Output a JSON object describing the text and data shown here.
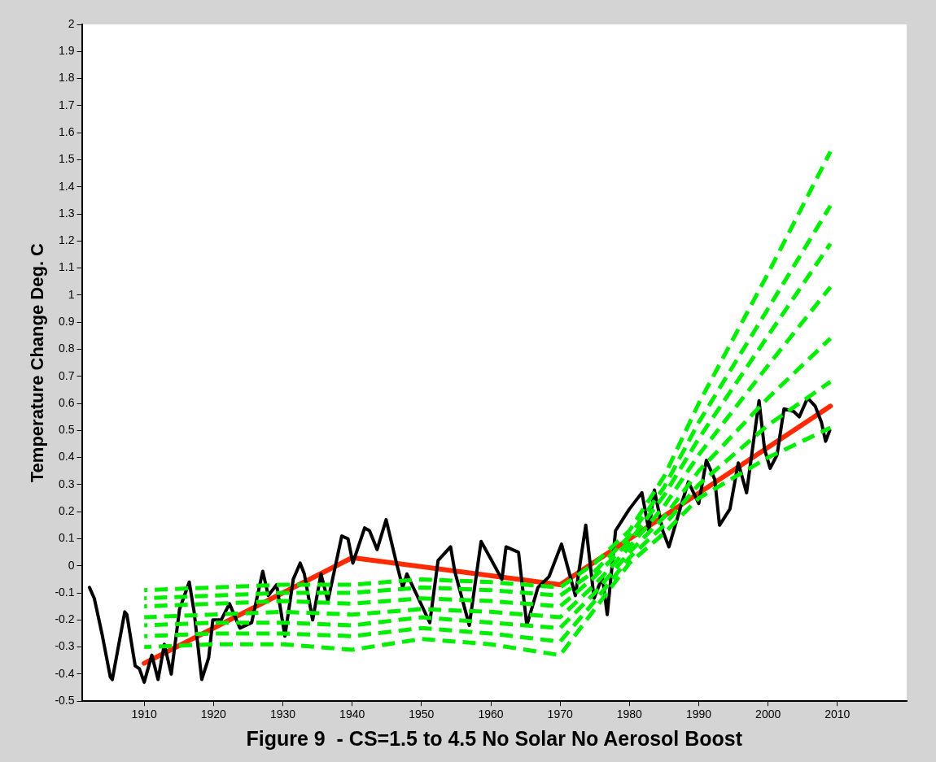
{
  "chart_data": {
    "type": "line",
    "xlabel": "Figure 9  - CS=1.5 to 4.5 No Solar No Aerosol Boost",
    "ylabel": "Temperature Change Deg. C",
    "xlim": [
      1901,
      2020
    ],
    "xticks": [
      1910,
      1920,
      1930,
      1940,
      1950,
      1960,
      1970,
      1980,
      1990,
      2000,
      2010
    ],
    "ylim": [
      -0.5,
      2
    ],
    "yticks": [
      -0.5,
      -0.4,
      -0.3,
      -0.2,
      -0.1,
      0,
      0.1,
      0.2,
      0.3,
      0.4,
      0.5,
      0.6,
      0.7,
      0.8,
      0.9,
      1,
      1.1,
      1.2,
      1.3,
      1.4,
      1.5,
      1.6,
      1.7,
      1.8,
      1.9,
      2
    ],
    "grid": false,
    "legend": false,
    "marker": "none",
    "series": [
      {
        "color": "#00ee00",
        "line_style": "dashed",
        "x": [
          1910,
          1920,
          1930,
          1940,
          1950,
          1960,
          1970,
          1975,
          1980,
          1985,
          1990,
          2000,
          2009
        ],
        "values": [
          -0.09,
          -0.08,
          -0.07,
          -0.07,
          -0.05,
          -0.06,
          -0.08,
          0.01,
          0.13,
          0.33,
          0.6,
          1.08,
          1.53
        ]
      },
      {
        "color": "#00ee00",
        "line_style": "dashed",
        "x": [
          1910,
          1920,
          1930,
          1940,
          1950,
          1960,
          1970,
          1975,
          1980,
          1985,
          1990,
          2000,
          2009
        ],
        "values": [
          -0.12,
          -0.11,
          -0.1,
          -0.1,
          -0.08,
          -0.09,
          -0.11,
          -0.02,
          0.11,
          0.29,
          0.53,
          0.95,
          1.33
        ]
      },
      {
        "color": "#00ee00",
        "line_style": "dashed",
        "x": [
          1910,
          1920,
          1930,
          1940,
          1950,
          1960,
          1970,
          1975,
          1980,
          1985,
          1990,
          2000,
          2009
        ],
        "values": [
          -0.15,
          -0.14,
          -0.13,
          -0.14,
          -0.12,
          -0.13,
          -0.15,
          -0.04,
          0.09,
          0.26,
          0.47,
          0.85,
          1.19
        ]
      },
      {
        "color": "#00ee00",
        "line_style": "dashed",
        "x": [
          1910,
          1920,
          1930,
          1940,
          1950,
          1960,
          1970,
          1975,
          1980,
          1985,
          1990,
          2000,
          2009
        ],
        "values": [
          -0.19,
          -0.18,
          -0.17,
          -0.18,
          -0.16,
          -0.17,
          -0.19,
          -0.07,
          0.07,
          0.22,
          0.41,
          0.74,
          1.03
        ]
      },
      {
        "color": "#00ee00",
        "line_style": "dashed",
        "x": [
          1910,
          1920,
          1930,
          1940,
          1950,
          1960,
          1970,
          1975,
          1980,
          1985,
          1990,
          2000,
          2009
        ],
        "values": [
          -0.22,
          -0.21,
          -0.21,
          -0.22,
          -0.19,
          -0.21,
          -0.23,
          -0.1,
          0.05,
          0.18,
          0.35,
          0.62,
          0.84
        ]
      },
      {
        "color": "#00ee00",
        "line_style": "dashed",
        "x": [
          1910,
          1920,
          1930,
          1940,
          1950,
          1960,
          1970,
          1975,
          1980,
          1985,
          1990,
          2000,
          2009
        ],
        "values": [
          -0.26,
          -0.25,
          -0.25,
          -0.26,
          -0.23,
          -0.25,
          -0.28,
          -0.13,
          0.03,
          0.15,
          0.3,
          0.52,
          0.68
        ]
      },
      {
        "color": "#00ee00",
        "line_style": "dashed",
        "x": [
          1910,
          1920,
          1930,
          1940,
          1950,
          1960,
          1970,
          1975,
          1980,
          1985,
          1990,
          2000,
          2009
        ],
        "values": [
          -0.3,
          -0.29,
          -0.29,
          -0.31,
          -0.27,
          -0.29,
          -0.33,
          -0.16,
          0.01,
          0.12,
          0.25,
          0.4,
          0.51
        ]
      },
      {
        "color": "#000000",
        "line_style": "solid",
        "x": [
          1902.1,
          1902.8,
          1903.9,
          1905.1,
          1905.4,
          1907.2,
          1907.5,
          1908.7,
          1909.3,
          1910,
          1911.1,
          1912,
          1912.9,
          1913.9,
          1915.1,
          1916.5,
          1917.2,
          1918.3,
          1919.3,
          1919.9,
          1921.1,
          1922.3,
          1923.8,
          1925.5,
          1927.1,
          1927.9,
          1929.1,
          1930.3,
          1931.5,
          1932.5,
          1933.1,
          1934.3,
          1935.5,
          1936.5,
          1938.5,
          1939.4,
          1940.1,
          1941.8,
          1942.5,
          1943.6,
          1944.9,
          1946.3,
          1947.3,
          1947.9,
          1951.2,
          1952.4,
          1954.2,
          1954.8,
          1956.9,
          1958.6,
          1959.9,
          1961.6,
          1962.2,
          1964,
          1965.2,
          1966.8,
          1968.4,
          1970.2,
          1972.2,
          1973.7,
          1974.9,
          1976.1,
          1976.8,
          1978,
          1980,
          1981.8,
          1982.8,
          1983.6,
          1984.8,
          1985.7,
          1987.3,
          1988.5,
          1990,
          1991.1,
          1992.3,
          1993,
          1994.5,
          1995.7,
          1996.9,
          1998.7,
          1999.5,
          2000.3,
          2001.3,
          2002.3,
          2003.7,
          2004.5,
          2005.7,
          2006.8,
          2007.7,
          2008.3,
          2008.9
        ],
        "values": [
          -0.08,
          -0.12,
          -0.25,
          -0.41,
          -0.42,
          -0.17,
          -0.18,
          -0.37,
          -0.38,
          -0.43,
          -0.33,
          -0.42,
          -0.29,
          -0.4,
          -0.16,
          -0.06,
          -0.17,
          -0.42,
          -0.34,
          -0.2,
          -0.2,
          -0.14,
          -0.23,
          -0.21,
          -0.02,
          -0.11,
          -0.07,
          -0.26,
          -0.05,
          0.01,
          -0.03,
          -0.2,
          -0.03,
          -0.13,
          0.11,
          0.1,
          0.01,
          0.14,
          0.13,
          0.06,
          0.17,
          0.02,
          -0.08,
          -0.03,
          -0.21,
          0.02,
          0.07,
          -0.02,
          -0.22,
          0.09,
          0.03,
          -0.05,
          0.07,
          0.05,
          -0.22,
          -0.08,
          -0.04,
          0.08,
          -0.11,
          0.15,
          -0.12,
          -0.04,
          -0.18,
          0.13,
          0.21,
          0.27,
          0.13,
          0.28,
          0.13,
          0.07,
          0.21,
          0.31,
          0.23,
          0.39,
          0.32,
          0.15,
          0.21,
          0.38,
          0.27,
          0.61,
          0.43,
          0.36,
          0.41,
          0.58,
          0.57,
          0.55,
          0.62,
          0.59,
          0.53,
          0.46,
          0.5
        ]
      },
      {
        "color": "#ff2a00",
        "line_style": "solid",
        "x": [
          1910,
          1940,
          1970,
          2009
        ],
        "values": [
          -0.36,
          0.03,
          -0.07,
          0.59
        ]
      }
    ]
  }
}
